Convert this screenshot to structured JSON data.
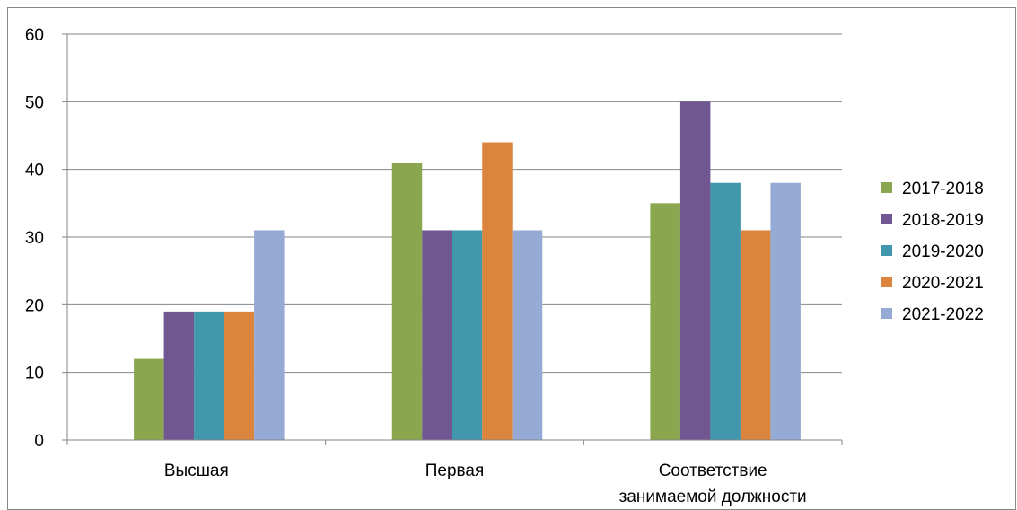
{
  "chart_data": {
    "type": "bar",
    "title": "",
    "xlabel": "",
    "ylabel": "",
    "ylim": [
      0,
      60
    ],
    "yticks": [
      0,
      10,
      20,
      30,
      40,
      50,
      60
    ],
    "grid": true,
    "legend_position": "right",
    "categories": [
      [
        "Высшая"
      ],
      [
        "Первая"
      ],
      [
        "Соответствие",
        "занимаемой должности"
      ]
    ],
    "series": [
      {
        "name": "2017-2018",
        "color": "#8aa64e",
        "values": [
          12,
          41,
          35
        ]
      },
      {
        "name": "2018-2019",
        "color": "#715791",
        "values": [
          19,
          31,
          50
        ]
      },
      {
        "name": "2019-2020",
        "color": "#4198ad",
        "values": [
          19,
          31,
          38
        ]
      },
      {
        "name": "2020-2021",
        "color": "#db843d",
        "values": [
          19,
          44,
          31
        ]
      },
      {
        "name": "2021-2022",
        "color": "#95abd5",
        "values": [
          31,
          31,
          38
        ]
      }
    ]
  }
}
